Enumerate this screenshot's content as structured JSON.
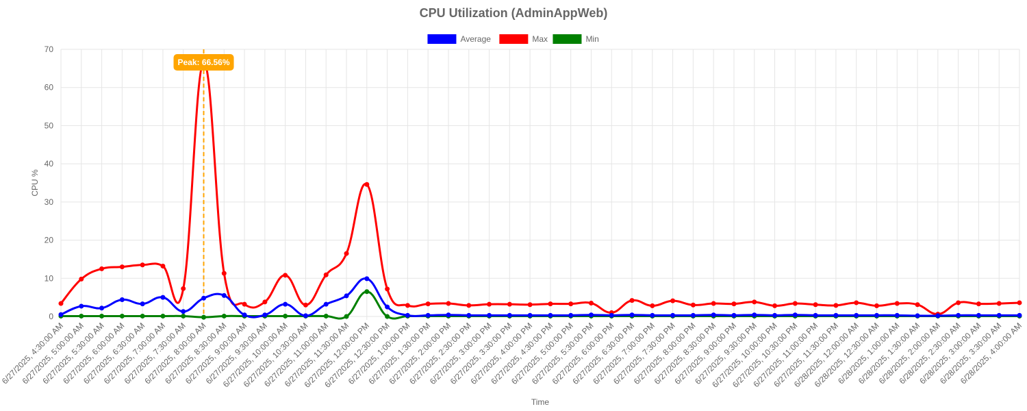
{
  "chart_data": {
    "type": "line",
    "title": "CPU Utilization (AdminAppWeb)",
    "xlabel": "Time",
    "ylabel": "CPU %",
    "ylim": [
      0,
      70
    ],
    "y_ticks": [
      "0",
      "10",
      "20",
      "30",
      "40",
      "50",
      "60",
      "70"
    ],
    "grid": true,
    "legend_position": "top",
    "categories": [
      "6/27/2025, 4:30:00 AM",
      "6/27/2025, 5:00:00 AM",
      "6/27/2025, 5:30:00 AM",
      "6/27/2025, 6:00:00 AM",
      "6/27/2025, 6:30:00 AM",
      "6/27/2025, 7:00:00 AM",
      "6/27/2025, 7:30:00 AM",
      "6/27/2025, 8:00:00 AM",
      "6/27/2025, 8:30:00 AM",
      "6/27/2025, 9:00:00 AM",
      "6/27/2025, 9:30:00 AM",
      "6/27/2025, 10:00:00 AM",
      "6/27/2025, 10:30:00 AM",
      "6/27/2025, 11:00:00 AM",
      "6/27/2025, 11:30:00 AM",
      "6/27/2025, 12:00:00 PM",
      "6/27/2025, 12:30:00 PM",
      "6/27/2025, 1:00:00 PM",
      "6/27/2025, 1:30:00 PM",
      "6/27/2025, 2:00:00 PM",
      "6/27/2025, 2:30:00 PM",
      "6/27/2025, 3:00:00 PM",
      "6/27/2025, 3:30:00 PM",
      "6/27/2025, 4:00:00 PM",
      "6/27/2025, 4:30:00 PM",
      "6/27/2025, 5:00:00 PM",
      "6/27/2025, 5:30:00 PM",
      "6/27/2025, 6:00:00 PM",
      "6/27/2025, 6:30:00 PM",
      "6/27/2025, 7:00:00 PM",
      "6/27/2025, 7:30:00 PM",
      "6/27/2025, 8:00:00 PM",
      "6/27/2025, 8:30:00 PM",
      "6/27/2025, 9:00:00 PM",
      "6/27/2025, 9:30:00 PM",
      "6/27/2025, 10:00:00 PM",
      "6/27/2025, 10:30:00 PM",
      "6/27/2025, 11:00:00 PM",
      "6/27/2025, 11:30:00 PM",
      "6/28/2025, 12:00:00 AM",
      "6/28/2025, 12:30:00 AM",
      "6/28/2025, 1:00:00 AM",
      "6/28/2025, 1:30:00 AM",
      "6/28/2025, 2:00:00 AM",
      "6/28/2025, 2:30:00 AM",
      "6/28/2025, 3:00:00 AM",
      "6/28/2025, 3:30:00 AM",
      "6/28/2025, 4:00:00 AM"
    ],
    "series": [
      {
        "name": "Average",
        "color": "#0000ff",
        "values": [
          0.5,
          2.7,
          2.2,
          4.4,
          3.3,
          5.0,
          1.3,
          4.8,
          5.5,
          0.4,
          0.4,
          3.2,
          0.2,
          3.2,
          5.4,
          9.9,
          2.5,
          0.3,
          0.3,
          0.4,
          0.3,
          0.3,
          0.3,
          0.3,
          0.3,
          0.3,
          0.4,
          0.3,
          0.4,
          0.3,
          0.3,
          0.3,
          0.4,
          0.3,
          0.4,
          0.3,
          0.4,
          0.3,
          0.3,
          0.3,
          0.3,
          0.3,
          0.2,
          0.2,
          0.3,
          0.3,
          0.3,
          0.3
        ]
      },
      {
        "name": "Max",
        "color": "#ff0000",
        "values": [
          3.4,
          9.8,
          12.5,
          13.0,
          13.5,
          13.2,
          7.3,
          66.56,
          11.3,
          3.2,
          3.8,
          10.8,
          3.0,
          10.9,
          16.5,
          34.6,
          7.2,
          2.9,
          3.3,
          3.4,
          2.9,
          3.2,
          3.2,
          3.1,
          3.3,
          3.3,
          3.5,
          1.0,
          4.2,
          2.8,
          4.1,
          3.0,
          3.4,
          3.3,
          3.8,
          2.8,
          3.4,
          3.1,
          2.9,
          3.6,
          2.8,
          3.4,
          3.1,
          0.6,
          3.6,
          3.3,
          3.4,
          3.6
        ]
      },
      {
        "name": "Min",
        "color": "#008000",
        "values": [
          0.1,
          0.1,
          0.1,
          0.1,
          0.1,
          0.1,
          0.1,
          -0.2,
          0.1,
          0.1,
          0.1,
          0.1,
          0.1,
          0.1,
          0.0,
          6.5,
          0.0,
          0.1,
          0.1,
          0.1,
          0.1,
          0.1,
          0.1,
          0.1,
          0.1,
          0.1,
          0.1,
          0.1,
          0.1,
          0.1,
          0.1,
          0.1,
          0.1,
          0.1,
          0.1,
          0.1,
          0.1,
          0.1,
          0.1,
          0.1,
          0.1,
          0.1,
          0.1,
          0.1,
          0.1,
          0.1,
          0.1,
          0.1
        ]
      }
    ],
    "annotation": {
      "label": "Peak: 66.56%",
      "category_index": 7,
      "color": "#ffa500"
    }
  }
}
